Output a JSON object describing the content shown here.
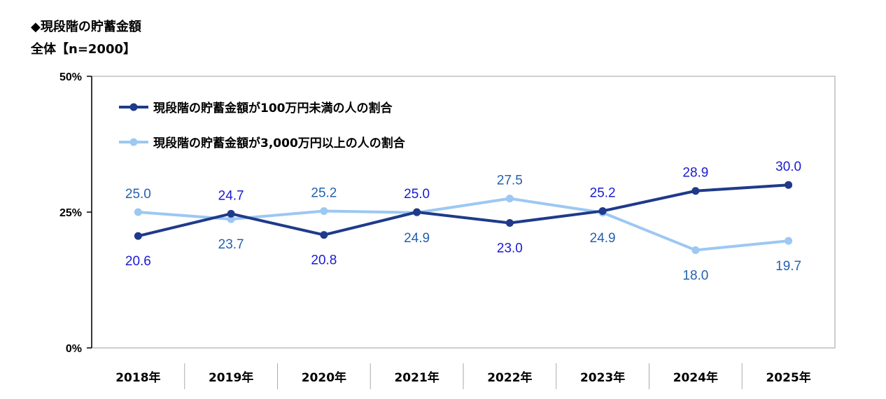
{
  "header": {
    "title": "◆現段階の貯蓄金額",
    "subtitle": "全体【n=2000】"
  },
  "legend": {
    "items": [
      {
        "label": "現段階の貯蓄金額が100万円未満の人の割合",
        "color": "#1f3a8a"
      },
      {
        "label": "現段階の貯蓄金額が3,000万円以上の人の割合",
        "color": "#9cc8f2"
      }
    ]
  },
  "colors": {
    "series1_line": "#1f3a8a",
    "series2_line": "#9cc8f2",
    "series1_label": "#1a1ad6",
    "series2_label": "#2461b0"
  },
  "chart_data": {
    "type": "line",
    "categories": [
      "2018年",
      "2019年",
      "2020年",
      "2021年",
      "2022年",
      "2023年",
      "2024年",
      "2025年"
    ],
    "series": [
      {
        "name": "現段階の貯蓄金額が100万円未満の人の割合",
        "values": [
          20.6,
          24.7,
          20.8,
          25.0,
          23.0,
          25.2,
          28.9,
          30.0
        ]
      },
      {
        "name": "現段階の貯蓄金額が3,000万円以上の人の割合",
        "values": [
          25.0,
          23.7,
          25.2,
          24.9,
          27.5,
          24.9,
          18.0,
          19.7
        ]
      }
    ],
    "ylim": [
      0,
      50
    ],
    "yticks": [
      "0%",
      "25%",
      "50%"
    ],
    "ytick_values": [
      0,
      25,
      50
    ],
    "labels": {
      "series1": [
        "20.6",
        "24.7",
        "20.8",
        "25.0",
        "23.0",
        "25.2",
        "28.9",
        "30.0"
      ],
      "series2": [
        "25.0",
        "23.7",
        "25.2",
        "24.9",
        "27.5",
        "24.9",
        "18.0",
        "19.7"
      ]
    },
    "xlabel": "",
    "ylabel": "",
    "grid": false,
    "legend_position": "top-left"
  }
}
